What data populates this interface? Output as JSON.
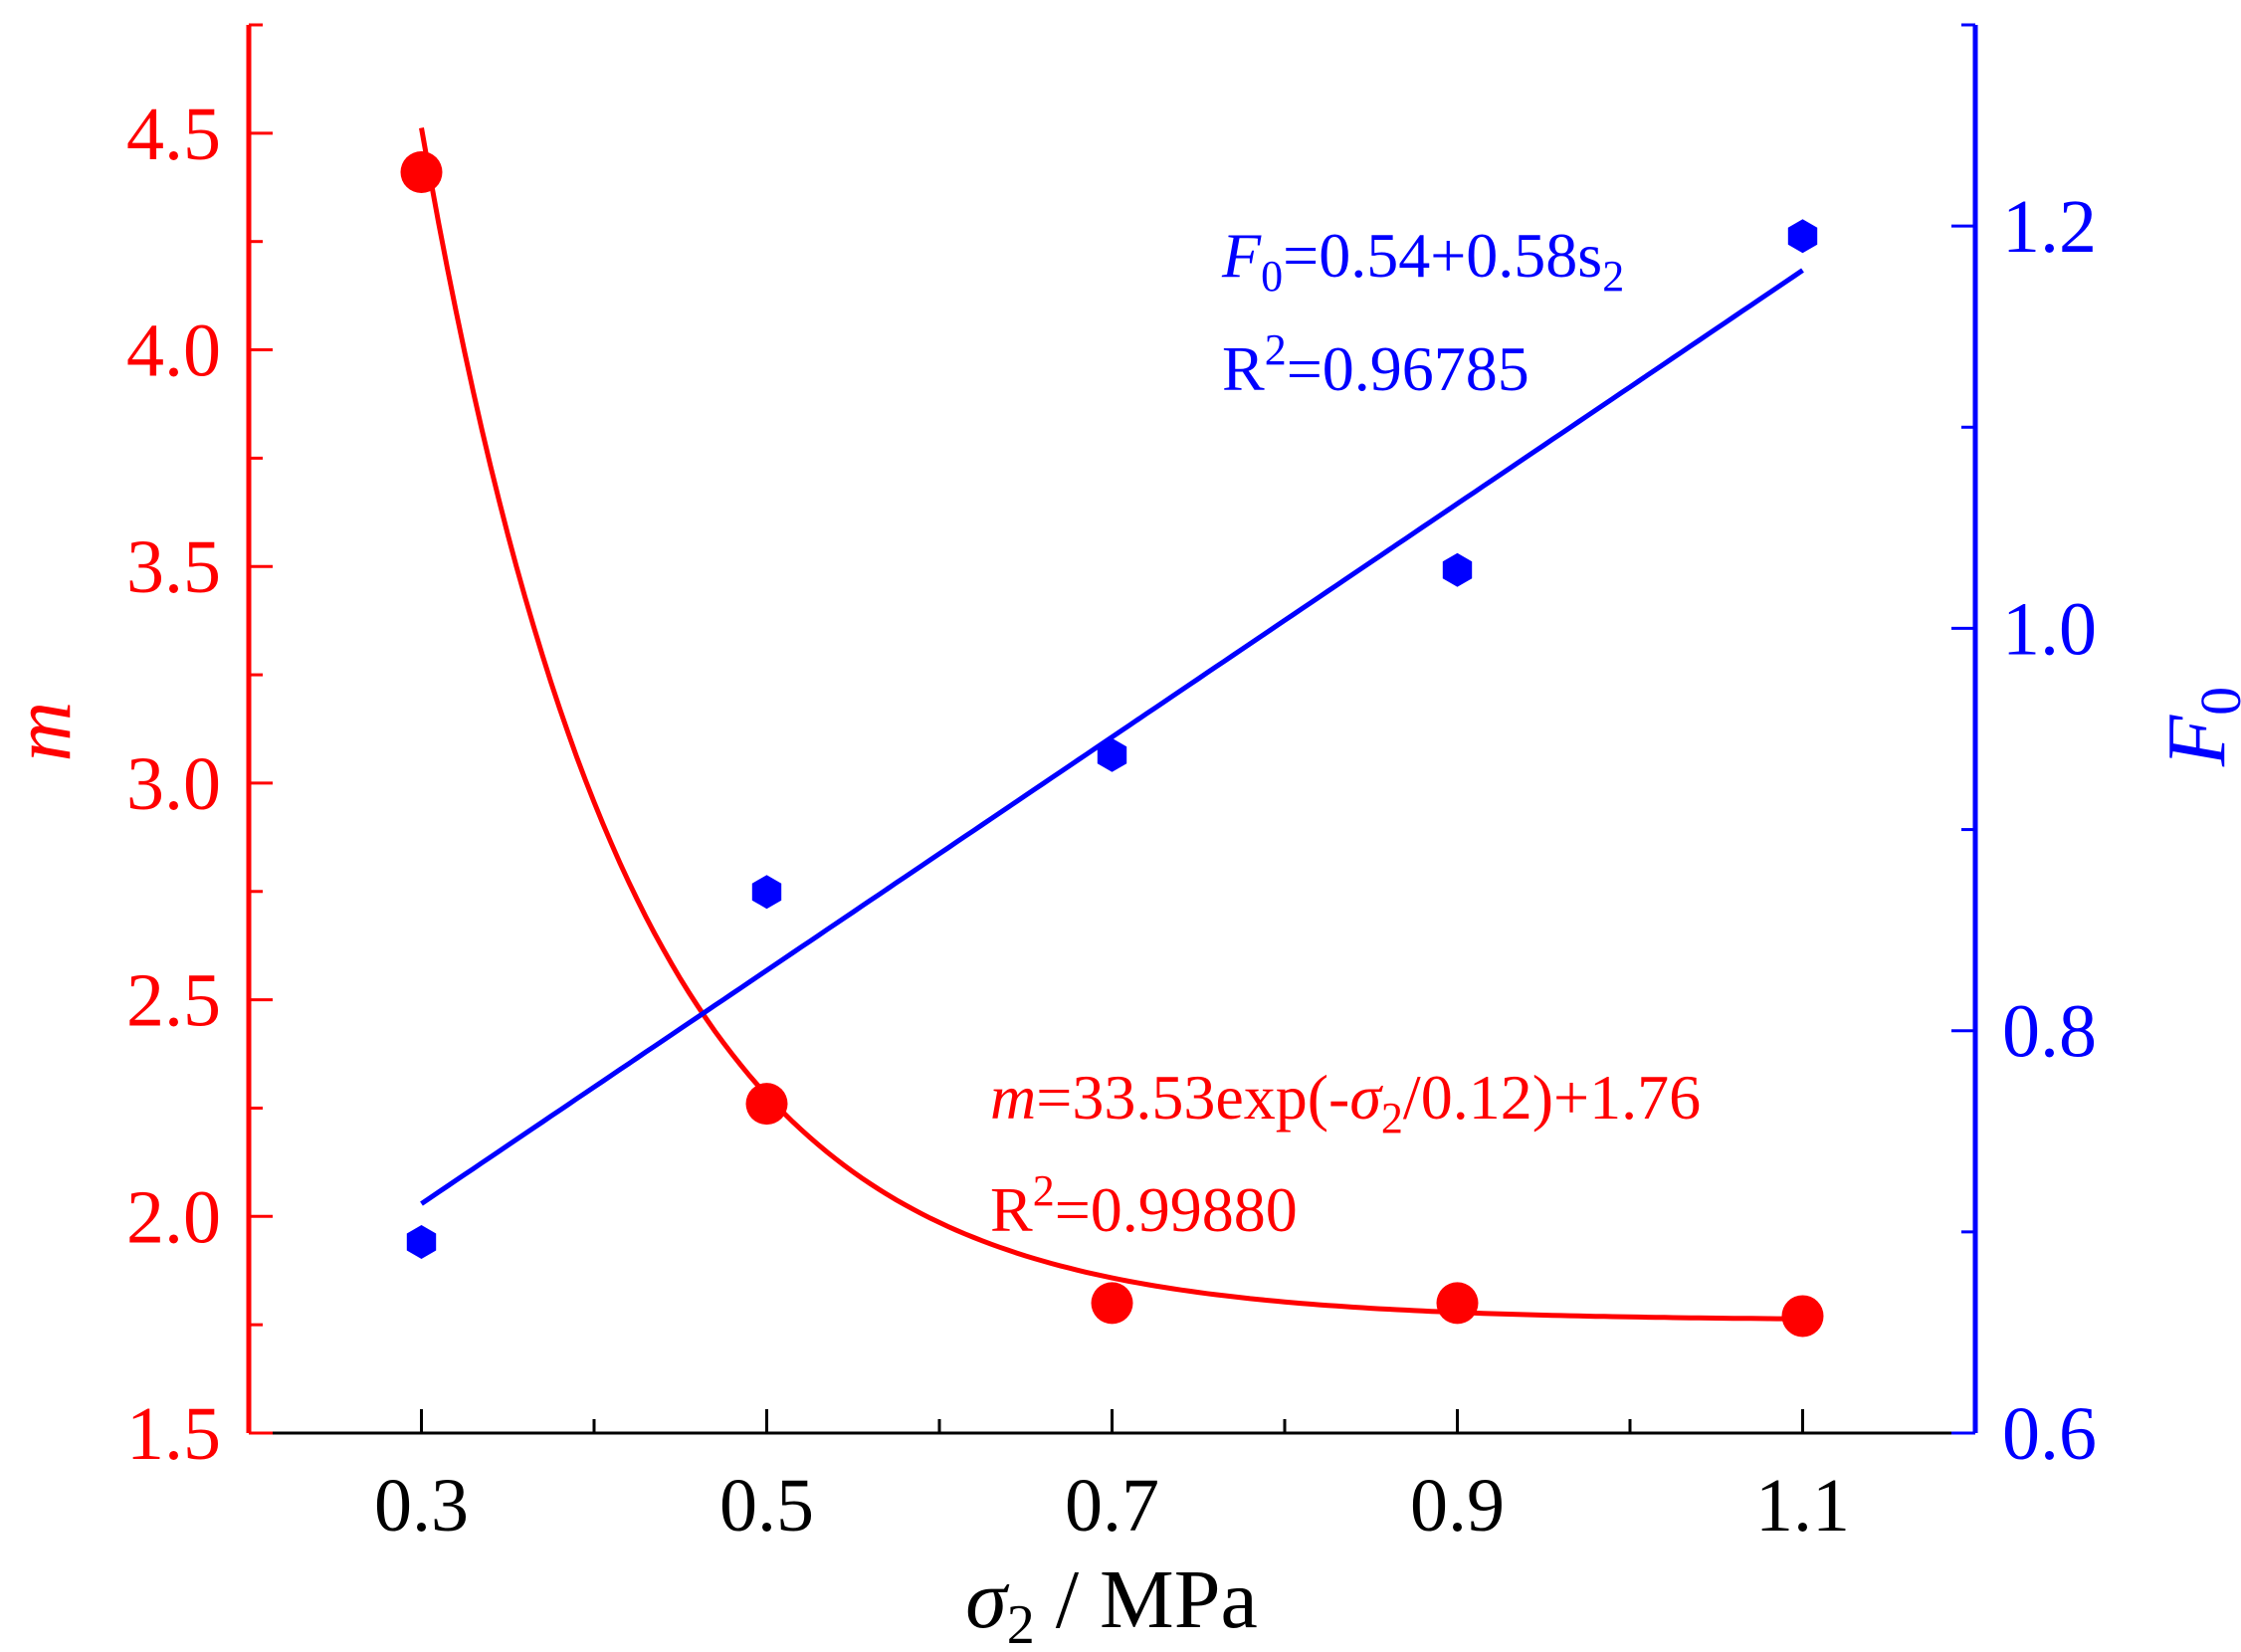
{
  "chart_data": {
    "type": "scatter",
    "title": "",
    "xlabel": {
      "symbol": "σ",
      "sub": "2",
      "unit": " / MPa"
    },
    "ylabel_left": {
      "text": "m",
      "color": "#ff0000"
    },
    "ylabel_right": {
      "text": "F",
      "sub": "0",
      "color": "#0000ff"
    },
    "xlim": [
      0.2,
      1.2
    ],
    "ylim_left": [
      1.5,
      4.75
    ],
    "ylim_right": [
      0.6,
      1.3
    ],
    "x_ticks": [
      "0.3",
      "0.5",
      "0.7",
      "0.9",
      "1.1"
    ],
    "x_tick_values": [
      0.3,
      0.5,
      0.7,
      0.9,
      1.1
    ],
    "left_ticks": [
      "1.5",
      "2.0",
      "2.5",
      "3.0",
      "3.5",
      "4.0",
      "4.5"
    ],
    "left_tick_values": [
      1.5,
      2.0,
      2.5,
      3.0,
      3.5,
      4.0,
      4.5
    ],
    "right_ticks": [
      "0.6",
      "0.8",
      "1.0",
      "1.2"
    ],
    "right_tick_values": [
      0.6,
      0.8,
      1.0,
      1.2
    ],
    "series": [
      {
        "name": "m",
        "axis": "left",
        "color": "#ff0000",
        "marker": "circle",
        "x": [
          0.3,
          0.5,
          0.7,
          0.9,
          1.1
        ],
        "values": [
          4.41,
          2.26,
          1.8,
          1.8,
          1.77
        ],
        "fit": {
          "type": "exp",
          "A": 33.53,
          "t": 0.12,
          "y0": 1.76,
          "x_range": [
            0.3,
            1.1
          ]
        }
      },
      {
        "name": "F0",
        "axis": "right",
        "color": "#0000ff",
        "marker": "hexagon",
        "x": [
          0.3,
          0.5,
          0.7,
          0.9,
          1.1
        ],
        "values": [
          0.695,
          0.869,
          0.937,
          1.029,
          1.195
        ],
        "fit": {
          "type": "linear",
          "intercept": 0.54,
          "slope": 0.58,
          "x_range": [
            0.3,
            1.1
          ]
        }
      }
    ],
    "annotations": {
      "blue_eq": {
        "var": "F",
        "sub": "0",
        "rest": "=0.54+0.58s",
        "sub2": "2"
      },
      "blue_r2": {
        "r": "R",
        "sup": "2",
        "rest": "=0.96785"
      },
      "red_eq": {
        "var": "m",
        "mid": "=33.53exp(-",
        "sigma": "σ",
        "sub": "2",
        "end": "/0.12)+1.76"
      },
      "red_r2": {
        "r": "R",
        "sup": "2",
        "rest": "=0.99880"
      }
    }
  }
}
